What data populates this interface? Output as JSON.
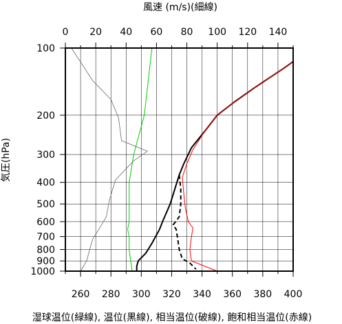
{
  "chart_data": {
    "type": "line",
    "title_top": "風速 (m/s)(細線)",
    "ylabel": "気圧(hPa)",
    "xlabel_bottom": "湿球温位(緑線), 温位(黒線), 相当温位(破線), 飽和相当温位(赤線)",
    "y_scale": "log",
    "ylim": [
      100,
      1000
    ],
    "y_ticks": [
      100,
      200,
      300,
      400,
      500,
      600,
      700,
      800,
      900,
      1000
    ],
    "x_bottom": {
      "range": [
        250,
        400
      ],
      "ticks": [
        260,
        280,
        300,
        320,
        340,
        360,
        380,
        400
      ]
    },
    "x_top": {
      "range": [
        0,
        150
      ],
      "ticks": [
        0,
        20,
        40,
        60,
        80,
        100,
        120,
        140
      ]
    },
    "series": [
      {
        "name": "湿球温位",
        "color": "#00cc00",
        "width": 1,
        "dash": "",
        "axis": "bottom",
        "points": [
          [
            307,
            100
          ],
          [
            302,
            200
          ],
          [
            295,
            300
          ],
          [
            292,
            400
          ],
          [
            292,
            500
          ],
          [
            292,
            600
          ],
          [
            291,
            650
          ],
          [
            292,
            700
          ],
          [
            292,
            800
          ],
          [
            293,
            900
          ],
          [
            294,
            1000
          ]
        ]
      },
      {
        "name": "温位",
        "color": "#000000",
        "width": 2,
        "dash": "",
        "axis": "bottom",
        "points": [
          [
            400,
            115
          ],
          [
            394,
            123
          ],
          [
            385,
            135
          ],
          [
            375,
            150
          ],
          [
            361,
            175
          ],
          [
            350,
            200
          ],
          [
            342,
            235
          ],
          [
            333,
            280
          ],
          [
            328,
            330
          ],
          [
            325,
            370
          ],
          [
            322,
            430
          ],
          [
            319,
            500
          ],
          [
            314,
            600
          ],
          [
            312,
            650
          ],
          [
            307,
            750
          ],
          [
            303,
            830
          ],
          [
            298,
            900
          ],
          [
            297,
            950
          ],
          [
            297,
            1000
          ]
        ]
      },
      {
        "name": "相当温位",
        "color": "#000000",
        "width": 2,
        "dash": "6,4",
        "axis": "bottom",
        "points": [
          [
            325,
            370
          ],
          [
            326,
            430
          ],
          [
            326,
            500
          ],
          [
            325,
            570
          ],
          [
            321,
            620
          ],
          [
            323,
            650
          ],
          [
            324,
            720
          ],
          [
            325,
            800
          ],
          [
            327,
            880
          ],
          [
            332,
            920
          ],
          [
            336,
            980
          ]
        ]
      },
      {
        "name": "飽和相当温位",
        "color": "#ff0000",
        "width": 1,
        "dash": "",
        "axis": "bottom",
        "points": [
          [
            400,
            115
          ],
          [
            394,
            123
          ],
          [
            385,
            135
          ],
          [
            375,
            150
          ],
          [
            361,
            175
          ],
          [
            350,
            200
          ],
          [
            342,
            235
          ],
          [
            334,
            285
          ],
          [
            330,
            330
          ],
          [
            327,
            380
          ],
          [
            328,
            450
          ],
          [
            329,
            520
          ],
          [
            331,
            600
          ],
          [
            334,
            640
          ],
          [
            333,
            700
          ],
          [
            332,
            800
          ],
          [
            333,
            900
          ],
          [
            350,
            1000
          ]
        ]
      },
      {
        "name": "風速",
        "color": "#666666",
        "width": 0.8,
        "dash": "",
        "axis": "top",
        "points": [
          [
            4,
            100
          ],
          [
            18,
            140
          ],
          [
            30,
            170
          ],
          [
            35,
            205
          ],
          [
            37,
            260
          ],
          [
            54,
            290
          ],
          [
            45,
            320
          ],
          [
            33,
            390
          ],
          [
            29,
            480
          ],
          [
            27,
            570
          ],
          [
            22,
            650
          ],
          [
            18,
            720
          ],
          [
            16,
            800
          ],
          [
            14,
            900
          ],
          [
            10,
            1000
          ]
        ]
      }
    ]
  }
}
